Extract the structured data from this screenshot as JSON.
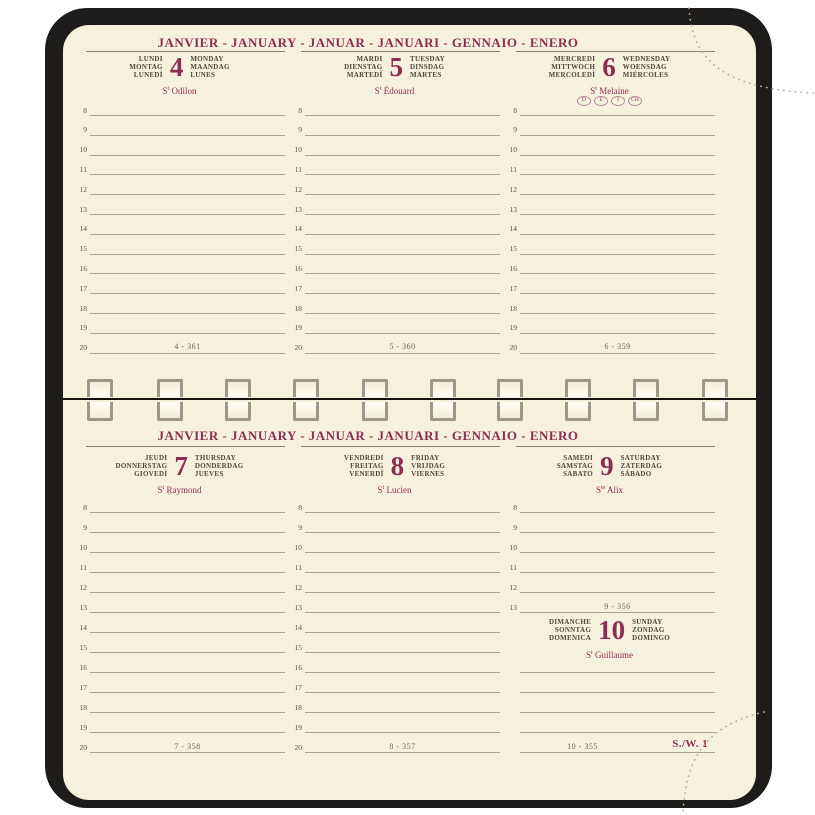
{
  "month_header": "JANVIER - JANUARY - JANUAR - JANUARI - GENNAIO - ENERO",
  "week_label": "S./W. 1",
  "colors": {
    "accent": "#8d2d52",
    "ink": "#4e473d",
    "rule_line": "#aaa396",
    "page": "#f6f1dd",
    "cover": "#1d1c1a"
  },
  "pages": [
    {
      "days": [
        {
          "names_left": [
            "LUNDI",
            "MONTAG",
            "LUNEDÌ"
          ],
          "number": "4",
          "names_right": [
            "MONDAY",
            "MAANDAG",
            "LUNES"
          ],
          "saint_base": "S",
          "saint_sup": "t",
          "saint_name": "Odilon",
          "badges": [],
          "hours": [
            "8",
            "9",
            "10",
            "11",
            "12",
            "13",
            "14",
            "15",
            "16",
            "17",
            "18",
            "19",
            "20"
          ],
          "day_of_year": "4 - 361"
        },
        {
          "names_left": [
            "MARDI",
            "DIENSTAG",
            "MARTEDÌ"
          ],
          "number": "5",
          "names_right": [
            "TUESDAY",
            "DINSDAG",
            "MARTES"
          ],
          "saint_base": "S",
          "saint_sup": "t",
          "saint_name": "Édouard",
          "badges": [],
          "hours": [
            "8",
            "9",
            "10",
            "11",
            "12",
            "13",
            "14",
            "15",
            "16",
            "17",
            "18",
            "19",
            "20"
          ],
          "day_of_year": "5 - 360"
        },
        {
          "names_left": [
            "MERCREDI",
            "MITTWOCH",
            "MERCOLEDÌ"
          ],
          "number": "6",
          "names_right": [
            "WEDNESDAY",
            "WOENSDAG",
            "MIÉRCOLES"
          ],
          "saint_base": "S",
          "saint_sup": "t",
          "saint_name": "Melaine",
          "badges": [
            "D",
            "E",
            "I",
            "CH"
          ],
          "hours": [
            "8",
            "9",
            "10",
            "11",
            "12",
            "13",
            "14",
            "15",
            "16",
            "17",
            "18",
            "19",
            "20"
          ],
          "day_of_year": "6 - 359"
        }
      ]
    },
    {
      "days": [
        {
          "names_left": [
            "JEUDI",
            "DONNERSTAG",
            "GIOVEDÌ"
          ],
          "number": "7",
          "names_right": [
            "THURSDAY",
            "DONDERDAG",
            "JUEVES"
          ],
          "saint_base": "S",
          "saint_sup": "t",
          "saint_name": "Raymond",
          "badges": [],
          "hours": [
            "8",
            "9",
            "10",
            "11",
            "12",
            "13",
            "14",
            "15",
            "16",
            "17",
            "18",
            "19",
            "20"
          ],
          "day_of_year": "7 - 358"
        },
        {
          "names_left": [
            "VENDREDI",
            "FREITAG",
            "VENERDÌ"
          ],
          "number": "8",
          "names_right": [
            "FRIDAY",
            "VRIJDAG",
            "VIERNES"
          ],
          "saint_base": "S",
          "saint_sup": "t",
          "saint_name": "Lucien",
          "badges": [],
          "hours": [
            "8",
            "9",
            "10",
            "11",
            "12",
            "13",
            "14",
            "15",
            "16",
            "17",
            "18",
            "19",
            "20"
          ],
          "day_of_year": "8 - 357"
        },
        {
          "names_left": [
            "SAMEDI",
            "SAMSTAG",
            "SABATO"
          ],
          "number": "9",
          "names_right": [
            "SATURDAY",
            "ZATERDAG",
            "SÁBADO"
          ],
          "saint_base": "S",
          "saint_sup": "te",
          "saint_name": "Alix",
          "badges": [],
          "hours": [
            "8",
            "9",
            "10",
            "11",
            "12",
            "13"
          ],
          "day_of_year": "9 - 356",
          "sub_day": {
            "names_left": [
              "DIMANCHE",
              "SONNTAG",
              "DOMENICA"
            ],
            "number": "10",
            "names_right": [
              "SUNDAY",
              "ZONDAG",
              "DOMINGO"
            ],
            "saint_base": "S",
            "saint_sup": "t",
            "saint_name": "Guillaume",
            "plain_lines": 5,
            "day_of_year": "10 - 355",
            "week_label": "S./W. 1"
          }
        }
      ]
    }
  ]
}
